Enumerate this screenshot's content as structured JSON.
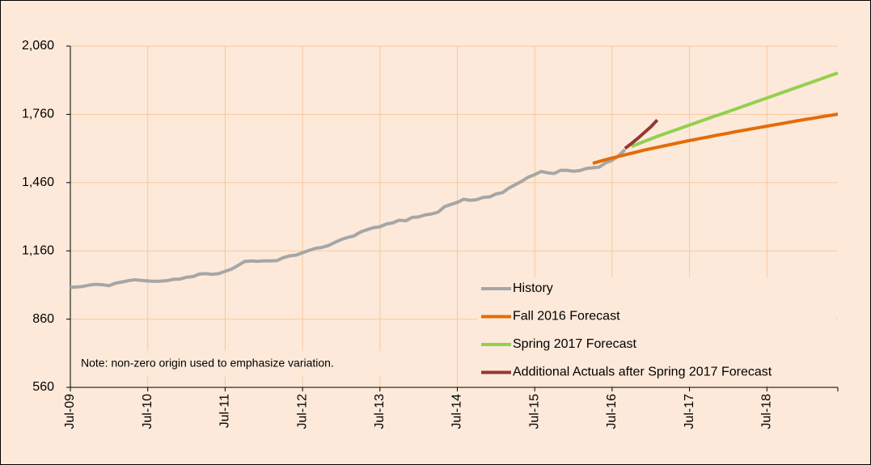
{
  "chart_data": {
    "type": "line",
    "annotation": "Note: non-zero origin used to emphasize variation.",
    "categories": [
      "Jul-09",
      null,
      null,
      null,
      null,
      null,
      null,
      null,
      null,
      null,
      null,
      null,
      "Jul-10",
      null,
      null,
      null,
      null,
      null,
      null,
      null,
      null,
      null,
      null,
      null,
      "Jul-11",
      null,
      null,
      null,
      null,
      null,
      null,
      null,
      null,
      null,
      null,
      null,
      "Jul-12",
      null,
      null,
      null,
      null,
      null,
      null,
      null,
      null,
      null,
      null,
      null,
      "Jul-13",
      null,
      null,
      null,
      null,
      null,
      null,
      null,
      null,
      null,
      null,
      null,
      "Jul-14",
      null,
      null,
      null,
      null,
      null,
      null,
      null,
      null,
      null,
      null,
      null,
      "Jul-15",
      null,
      null,
      null,
      null,
      null,
      null,
      null,
      null,
      null,
      null,
      null,
      "Jul-16",
      null,
      null,
      null,
      null,
      null,
      null,
      null,
      null,
      null,
      null,
      null,
      "Jul-17",
      null,
      null,
      null,
      null,
      null,
      null,
      null,
      null,
      null,
      null,
      null,
      "Jul-18",
      null,
      null,
      null,
      null,
      null,
      null,
      null,
      null,
      null,
      null,
      null
    ],
    "series": [
      {
        "name": "History",
        "color": "#a6a6a6",
        "values": [
          1000,
          1001,
          1004,
          1010,
          1013,
          1011,
          1007,
          1018,
          1023,
          1029,
          1033,
          1030,
          1028,
          1026,
          1027,
          1029,
          1035,
          1036,
          1044,
          1047,
          1058,
          1060,
          1057,
          1060,
          1070,
          1080,
          1096,
          1113,
          1116,
          1114,
          1116,
          1116,
          1117,
          1130,
          1138,
          1141,
          1152,
          1162,
          1171,
          1175,
          1183,
          1197,
          1210,
          1219,
          1226,
          1243,
          1253,
          1262,
          1266,
          1278,
          1283,
          1295,
          1292,
          1307,
          1309,
          1318,
          1322,
          1330,
          1354,
          1364,
          1373,
          1387,
          1382,
          1385,
          1395,
          1397,
          1410,
          1416,
          1436,
          1451,
          1466,
          1484,
          1495,
          1509,
          1503,
          1500,
          1514,
          1514,
          1510,
          1513,
          1522,
          1525,
          1528,
          1547,
          1558,
          1578,
          1605,
          null,
          null,
          null,
          null,
          null,
          null,
          null,
          null,
          null,
          null,
          null,
          null,
          null,
          null,
          null,
          null,
          null,
          null,
          null,
          null,
          null,
          null,
          null,
          null,
          null,
          null,
          null,
          null,
          null,
          null,
          null,
          null,
          null
        ]
      },
      {
        "name": "Fall 2016 Forecast",
        "color": "#e46c0a",
        "values": [
          null,
          null,
          null,
          null,
          null,
          null,
          null,
          null,
          null,
          null,
          null,
          null,
          null,
          null,
          null,
          null,
          null,
          null,
          null,
          null,
          null,
          null,
          null,
          null,
          null,
          null,
          null,
          null,
          null,
          null,
          null,
          null,
          null,
          null,
          null,
          null,
          null,
          null,
          null,
          null,
          null,
          null,
          null,
          null,
          null,
          null,
          null,
          null,
          null,
          null,
          null,
          null,
          null,
          null,
          null,
          null,
          null,
          null,
          null,
          null,
          null,
          null,
          null,
          null,
          null,
          null,
          null,
          null,
          null,
          null,
          null,
          null,
          null,
          null,
          null,
          null,
          null,
          null,
          null,
          null,
          null,
          1545,
          1553,
          1561,
          1568,
          1575,
          1582,
          1589,
          1596,
          1603,
          1609,
          1615,
          1621,
          1627,
          1633,
          1639,
          1645,
          1650,
          1656,
          1661,
          1667,
          1672,
          1677,
          1683,
          1688,
          1693,
          1698,
          1703,
          1708,
          1713,
          1718,
          1723,
          1728,
          1733,
          1738,
          1742,
          1747,
          1752,
          1756,
          1761
        ]
      },
      {
        "name": "Spring 2017 Forecast",
        "color": "#92d050",
        "values": [
          null,
          null,
          null,
          null,
          null,
          null,
          null,
          null,
          null,
          null,
          null,
          null,
          null,
          null,
          null,
          null,
          null,
          null,
          null,
          null,
          null,
          null,
          null,
          null,
          null,
          null,
          null,
          null,
          null,
          null,
          null,
          null,
          null,
          null,
          null,
          null,
          null,
          null,
          null,
          null,
          null,
          null,
          null,
          null,
          null,
          null,
          null,
          null,
          null,
          null,
          null,
          null,
          null,
          null,
          null,
          null,
          null,
          null,
          null,
          null,
          null,
          null,
          null,
          null,
          null,
          null,
          null,
          null,
          null,
          null,
          null,
          null,
          null,
          null,
          null,
          null,
          null,
          null,
          null,
          null,
          null,
          null,
          null,
          null,
          null,
          null,
          null,
          1619,
          1630,
          1641,
          1652,
          1663,
          1673,
          1683,
          1693,
          1703,
          1713,
          1723,
          1733,
          1743,
          1753,
          1762,
          1772,
          1782,
          1792,
          1802,
          1812,
          1822,
          1832,
          1842,
          1852,
          1862,
          1872,
          1882,
          1892,
          1902,
          1912,
          1922,
          1932,
          1942
        ]
      },
      {
        "name": "Additional Actuals after Spring 2017 Forecast",
        "color": "#953735",
        "values": [
          null,
          null,
          null,
          null,
          null,
          null,
          null,
          null,
          null,
          null,
          null,
          null,
          null,
          null,
          null,
          null,
          null,
          null,
          null,
          null,
          null,
          null,
          null,
          null,
          null,
          null,
          null,
          null,
          null,
          null,
          null,
          null,
          null,
          null,
          null,
          null,
          null,
          null,
          null,
          null,
          null,
          null,
          null,
          null,
          null,
          null,
          null,
          null,
          null,
          null,
          null,
          null,
          null,
          null,
          null,
          null,
          null,
          null,
          null,
          null,
          null,
          null,
          null,
          null,
          null,
          null,
          null,
          null,
          null,
          null,
          null,
          null,
          null,
          null,
          null,
          null,
          null,
          null,
          null,
          null,
          null,
          null,
          null,
          null,
          null,
          null,
          1610,
          1632,
          1655,
          1680,
          1705,
          1735,
          null,
          null,
          null,
          null,
          null,
          null,
          null,
          null,
          null,
          null,
          null,
          null,
          null,
          null,
          null,
          null,
          null,
          null,
          null,
          null,
          null,
          null,
          null,
          null,
          null,
          null,
          null,
          null
        ]
      }
    ],
    "ylim": [
      560,
      2060
    ],
    "yticks": [
      560,
      860,
      {
        "value": 1160,
        "label": "1,160"
      },
      {
        "value": 1460,
        "label": "1,460"
      },
      {
        "value": 1760,
        "label": "1,760"
      },
      {
        "value": 2060,
        "label": "2,060"
      }
    ],
    "grid": true,
    "legend": "lower right"
  }
}
